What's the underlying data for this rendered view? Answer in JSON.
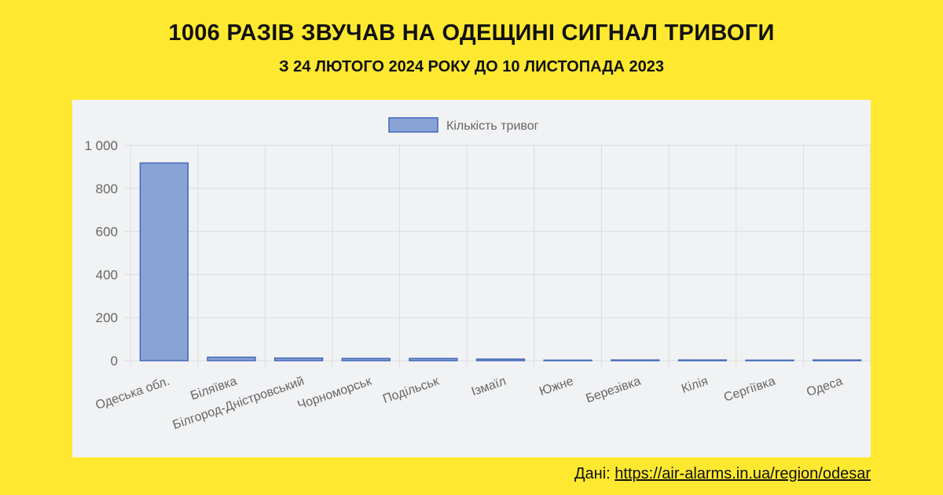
{
  "header": {
    "title": "1006 РАЗІВ ЗВУЧАВ НА ОДЕЩИНІ СИГНАЛ ТРИВОГИ",
    "subtitle": "З 24 ЛЮТОГО 2024 РОКУ ДО 10 ЛИСТОПАДА 2023"
  },
  "footer": {
    "source_label": "Дані:",
    "source_link": "https://air-alarms.in.ua/region/odesar"
  },
  "colors": {
    "background": "#FFE930",
    "panel": "#F1F2F4",
    "bar_fill": "#8AA3D6",
    "bar_stroke": "#3F67BA",
    "grid": "#DADCE0",
    "tick_text": "#666666"
  },
  "chart_data": {
    "type": "bar",
    "legend": [
      "Кількість тривог"
    ],
    "legend_position": "top",
    "grid": true,
    "categories": [
      "Одеська обл.",
      "Біляївка",
      "Білгород-Дністровський",
      "Чорноморськ",
      "Подільськ",
      "Ізмаїл",
      "Южне",
      "Березівка",
      "Кілія",
      "Сергіївка",
      "Одеса"
    ],
    "series": [
      {
        "name": "Кількість тривог",
        "values": [
          918,
          16,
          12,
          10,
          10,
          7,
          1,
          3,
          3,
          0,
          3
        ]
      }
    ],
    "ylim": [
      0,
      1000
    ],
    "yticks": [
      0,
      200,
      400,
      600,
      800,
      1000
    ],
    "ytick_labels": [
      "0",
      "200",
      "400",
      "600",
      "800",
      "1 000"
    ]
  }
}
